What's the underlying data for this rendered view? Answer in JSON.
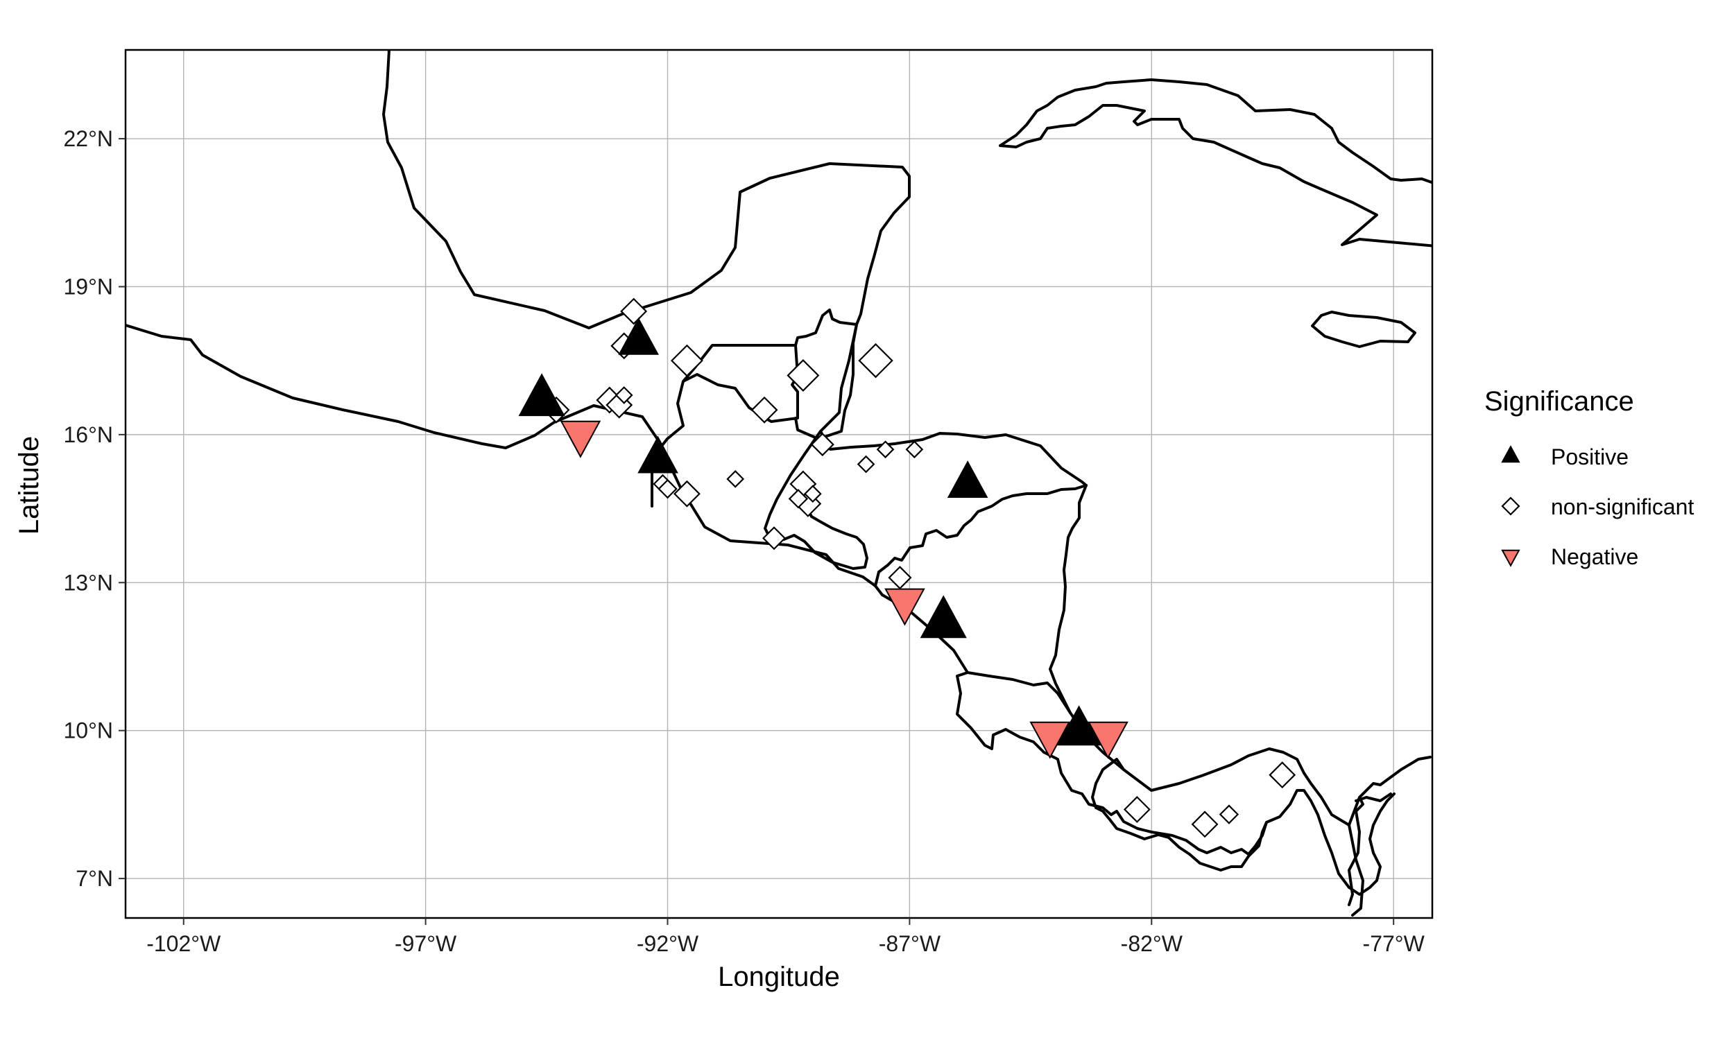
{
  "chart_data": {
    "type": "scatter",
    "xlabel": "Longitude",
    "ylabel": "Latitude",
    "xlim": [
      -103.2,
      -76.2
    ],
    "ylim": [
      6.2,
      23.8
    ],
    "x_ticks": [
      {
        "value": -102,
        "label": "-102°W"
      },
      {
        "value": -97,
        "label": "-97°W"
      },
      {
        "value": -92,
        "label": "-92°W"
      },
      {
        "value": -87,
        "label": "-87°W"
      },
      {
        "value": -82,
        "label": "-82°W"
      },
      {
        "value": -77,
        "label": "-77°W"
      }
    ],
    "y_ticks": [
      {
        "value": 7,
        "label": "7°N"
      },
      {
        "value": 10,
        "label": "10°N"
      },
      {
        "value": 13,
        "label": "13°N"
      },
      {
        "value": 16,
        "label": "16°N"
      },
      {
        "value": 19,
        "label": "19°N"
      },
      {
        "value": 22,
        "label": "22°N"
      }
    ],
    "grid": true,
    "legend": {
      "title": "Significance",
      "placement": "right",
      "entries": [
        {
          "label": "Positive",
          "shape": "triangle-up",
          "color": "#000000"
        },
        {
          "label": "non-significant",
          "shape": "diamond-open",
          "color": "#000000"
        },
        {
          "label": "Negative",
          "shape": "triangle-down",
          "color": "#f8766d"
        }
      ]
    },
    "points": [
      {
        "lon": -92.6,
        "lat": 17.9,
        "category": "Positive",
        "size": 3
      },
      {
        "lon": -94.6,
        "lat": 16.7,
        "category": "Positive",
        "size": 4
      },
      {
        "lon": -92.2,
        "lat": 15.5,
        "category": "Positive",
        "size": 3
      },
      {
        "lon": -85.8,
        "lat": 15.0,
        "category": "Positive",
        "size": 3
      },
      {
        "lon": -86.3,
        "lat": 12.2,
        "category": "Positive",
        "size": 4
      },
      {
        "lon": -83.5,
        "lat": 10.0,
        "category": "Positive",
        "size": 3.5
      },
      {
        "lon": -93.8,
        "lat": 16.0,
        "category": "Negative",
        "size": 3
      },
      {
        "lon": -87.1,
        "lat": 12.6,
        "category": "Negative",
        "size": 3
      },
      {
        "lon": -84.1,
        "lat": 9.9,
        "category": "Negative",
        "size": 3
      },
      {
        "lon": -82.9,
        "lat": 9.9,
        "category": "Negative",
        "size": 3
      },
      {
        "lon": -92.7,
        "lat": 18.5,
        "category": "non-significant",
        "size": 2
      },
      {
        "lon": -92.9,
        "lat": 17.8,
        "category": "non-significant",
        "size": 2
      },
      {
        "lon": -91.6,
        "lat": 17.5,
        "category": "non-significant",
        "size": 3
      },
      {
        "lon": -90.0,
        "lat": 16.5,
        "category": "non-significant",
        "size": 2
      },
      {
        "lon": -89.2,
        "lat": 17.2,
        "category": "non-significant",
        "size": 3
      },
      {
        "lon": -87.7,
        "lat": 17.5,
        "category": "non-significant",
        "size": 3.5
      },
      {
        "lon": -94.3,
        "lat": 16.5,
        "category": "non-significant",
        "size": 2
      },
      {
        "lon": -93.2,
        "lat": 16.7,
        "category": "non-significant",
        "size": 2
      },
      {
        "lon": -93.0,
        "lat": 16.6,
        "category": "non-significant",
        "size": 2
      },
      {
        "lon": -92.9,
        "lat": 16.8,
        "category": "non-significant",
        "size": 0.8
      },
      {
        "lon": -92.1,
        "lat": 15.0,
        "category": "non-significant",
        "size": 1
      },
      {
        "lon": -92.0,
        "lat": 14.9,
        "category": "non-significant",
        "size": 1
      },
      {
        "lon": -91.6,
        "lat": 14.8,
        "category": "non-significant",
        "size": 2
      },
      {
        "lon": -90.6,
        "lat": 15.1,
        "category": "non-significant",
        "size": 0.8
      },
      {
        "lon": -88.8,
        "lat": 15.8,
        "category": "non-significant",
        "size": 1.5
      },
      {
        "lon": -89.2,
        "lat": 15.0,
        "category": "non-significant",
        "size": 2
      },
      {
        "lon": -89.1,
        "lat": 14.6,
        "category": "non-significant",
        "size": 2
      },
      {
        "lon": -89.3,
        "lat": 14.7,
        "category": "non-significant",
        "size": 1
      },
      {
        "lon": -89.0,
        "lat": 14.8,
        "category": "non-significant",
        "size": 0.8
      },
      {
        "lon": -89.8,
        "lat": 13.9,
        "category": "non-significant",
        "size": 1.5
      },
      {
        "lon": -87.9,
        "lat": 15.4,
        "category": "non-significant",
        "size": 0.8
      },
      {
        "lon": -87.5,
        "lat": 15.7,
        "category": "non-significant",
        "size": 0.8
      },
      {
        "lon": -86.9,
        "lat": 15.7,
        "category": "non-significant",
        "size": 0.8
      },
      {
        "lon": -87.2,
        "lat": 13.1,
        "category": "non-significant",
        "size": 1.5
      },
      {
        "lon": -82.3,
        "lat": 8.4,
        "category": "non-significant",
        "size": 2
      },
      {
        "lon": -80.9,
        "lat": 8.1,
        "category": "non-significant",
        "size": 2
      },
      {
        "lon": -80.4,
        "lat": 8.3,
        "category": "non-significant",
        "size": 1
      },
      {
        "lon": -79.3,
        "lat": 9.1,
        "category": "non-significant",
        "size": 2
      }
    ]
  }
}
